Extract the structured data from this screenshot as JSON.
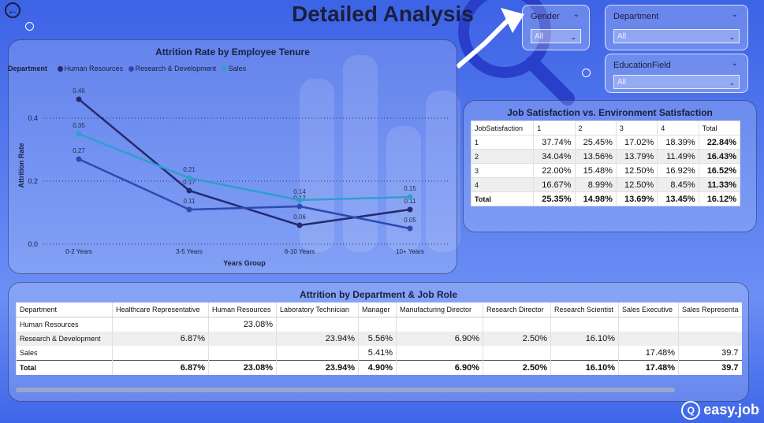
{
  "page": {
    "title": "Detailed Analysis"
  },
  "filters": {
    "gender": {
      "label": "Gender",
      "value": "All"
    },
    "department": {
      "label": "Department",
      "value": "All"
    },
    "education_field": {
      "label": "EducationField",
      "value": "All"
    }
  },
  "tenure_chart": {
    "title": "Attrition Rate by Employee Tenure",
    "legend_title": "Department",
    "series_labels": [
      "Human Resources",
      "Research & Development",
      "Sales"
    ],
    "colors": {
      "hr": "#262a6e",
      "rd": "#2d4ab0",
      "sales": "#2f9fcc"
    }
  },
  "chart_data": {
    "type": "line",
    "title": "Attrition Rate by Employee Tenure",
    "xlabel": "Years Group",
    "ylabel": "Attrition Rate",
    "categories": [
      "0-2 Years",
      "3-5 Years",
      "6-10 Years",
      "10+ Years"
    ],
    "series": [
      {
        "name": "Human Resources",
        "values": [
          0.46,
          0.17,
          0.06,
          0.11
        ]
      },
      {
        "name": "Research & Development",
        "values": [
          0.27,
          0.11,
          0.12,
          0.05
        ]
      },
      {
        "name": "Sales",
        "values": [
          0.35,
          0.21,
          0.14,
          0.15
        ]
      }
    ],
    "ylim": [
      0,
      0.5
    ],
    "yticks": [
      "0.0",
      "0.2",
      "0.4"
    ],
    "grid": true,
    "legend": "top-left"
  },
  "job_satisfaction": {
    "title": "Job Satisfaction vs. Environment Satisfaction",
    "headers": [
      "JobSatisfaction",
      "1",
      "2",
      "3",
      "4",
      "Total"
    ],
    "rows": [
      [
        "1",
        "37.74%",
        "25.45%",
        "17.02%",
        "18.39%",
        "22.84%"
      ],
      [
        "2",
        "34.04%",
        "13.56%",
        "13.79%",
        "11.49%",
        "16.43%"
      ],
      [
        "3",
        "22.00%",
        "15.48%",
        "12.50%",
        "16.92%",
        "16.52%"
      ],
      [
        "4",
        "16.67%",
        "8.99%",
        "12.50%",
        "8.45%",
        "11.33%"
      ]
    ],
    "total": [
      "Total",
      "25.35%",
      "14.98%",
      "13.69%",
      "13.45%",
      "16.12%"
    ]
  },
  "dept_role": {
    "title": "Attrition by Department & Job Role",
    "headers": [
      "Department",
      "Healthcare Representative",
      "Human Resources",
      "Laboratory Technician",
      "Manager",
      "Manufacturing Director",
      "Research Director",
      "Research Scientist",
      "Sales Executive",
      "Sales Representa"
    ],
    "rows": [
      [
        "Human Resources",
        "",
        "23.08%",
        "",
        "",
        "",
        "",
        "",
        "",
        ""
      ],
      [
        "Research & Development",
        "6.87%",
        "",
        "23.94%",
        "5.56%",
        "6.90%",
        "2.50%",
        "16.10%",
        "",
        ""
      ],
      [
        "Sales",
        "",
        "",
        "",
        "5.41%",
        "",
        "",
        "",
        "17.48%",
        "39.7"
      ]
    ],
    "total": [
      "Total",
      "6.87%",
      "23.08%",
      "23.94%",
      "4.90%",
      "6.90%",
      "2.50%",
      "16.10%",
      "17.48%",
      "39.7"
    ]
  },
  "watermark": {
    "text": "easy.job"
  }
}
